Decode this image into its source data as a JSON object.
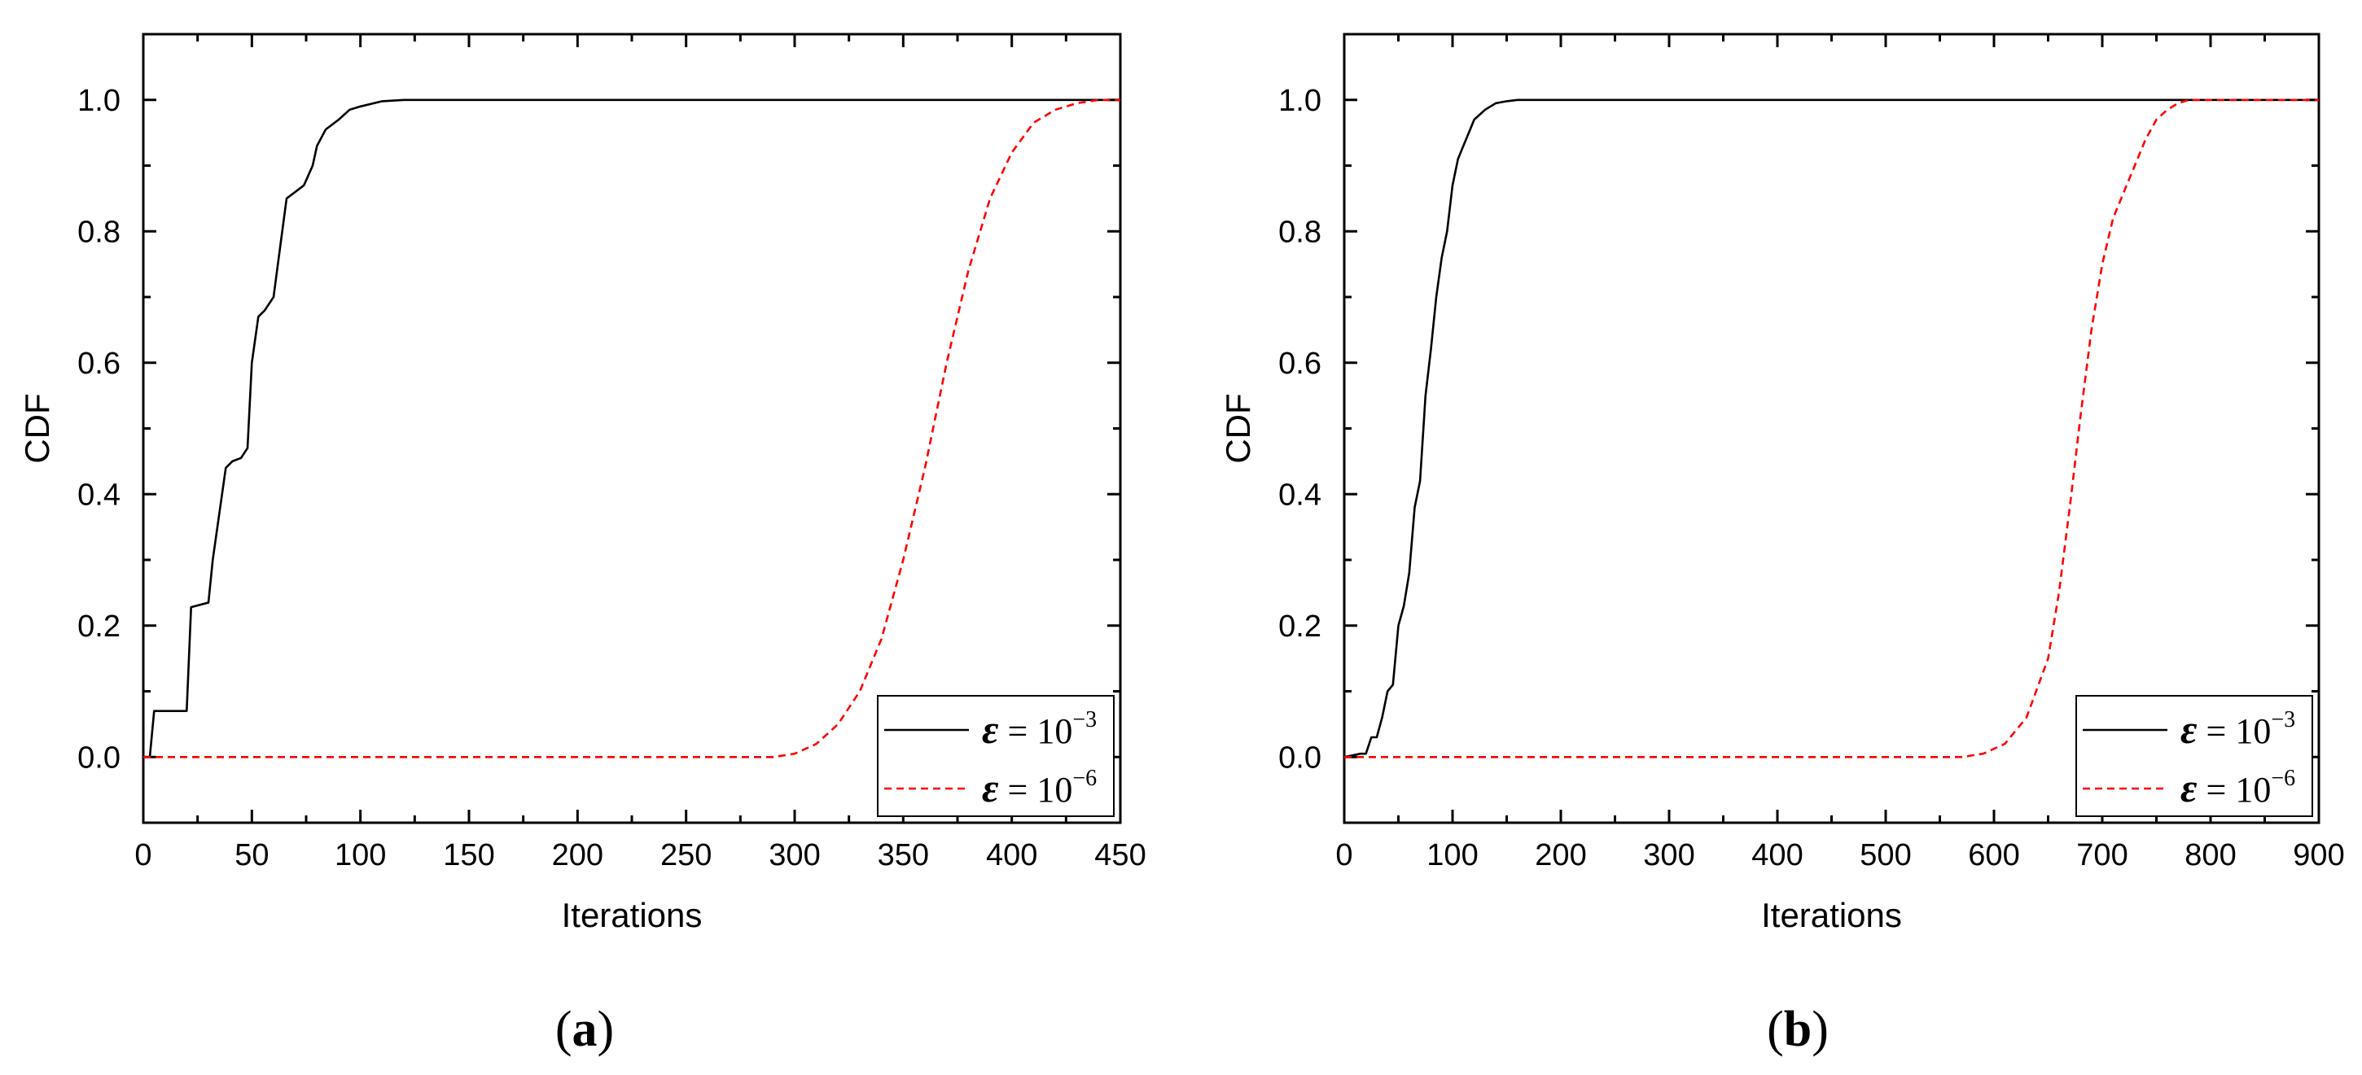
{
  "chart_data": [
    {
      "panel_label": "a",
      "type": "line",
      "xlabel": "Iterations",
      "ylabel": "CDF",
      "xlim": [
        0,
        450
      ],
      "ylim": [
        -0.1,
        1.1
      ],
      "xticks": [
        "0",
        "50",
        "100",
        "150",
        "200",
        "250",
        "300",
        "350",
        "400",
        "450"
      ],
      "yticks": [
        "0.0",
        "0.2",
        "0.4",
        "0.6",
        "0.8",
        "1.0"
      ],
      "legend_position": "bottom-right",
      "series": [
        {
          "name": "ε = 10^-3",
          "legend": {
            "symbol": "ε",
            "eq": " = 10",
            "exp": "−3"
          },
          "color": "#000000",
          "style": "solid",
          "x": [
            3,
            5,
            20,
            22,
            30,
            32,
            38,
            41,
            45,
            48,
            50,
            53,
            56,
            60,
            62,
            66,
            70,
            74,
            78,
            80,
            84,
            90,
            95,
            100,
            110,
            120,
            450
          ],
          "y": [
            0.0,
            0.07,
            0.07,
            0.228,
            0.235,
            0.3,
            0.44,
            0.45,
            0.455,
            0.47,
            0.6,
            0.67,
            0.68,
            0.7,
            0.75,
            0.85,
            0.86,
            0.87,
            0.9,
            0.93,
            0.955,
            0.97,
            0.985,
            0.99,
            0.998,
            1.0,
            1.0
          ]
        },
        {
          "name": "ε = 10^-6",
          "legend": {
            "symbol": "ε",
            "eq": " = 10",
            "exp": "−6"
          },
          "color": "#ff0000",
          "style": "dashed",
          "x": [
            0,
            290,
            300,
            310,
            320,
            330,
            340,
            350,
            360,
            370,
            380,
            390,
            400,
            410,
            420,
            430,
            440,
            450
          ],
          "y": [
            0.0,
            0.0,
            0.005,
            0.02,
            0.05,
            0.1,
            0.18,
            0.3,
            0.44,
            0.6,
            0.74,
            0.85,
            0.92,
            0.965,
            0.985,
            0.995,
            1.0,
            1.0
          ]
        }
      ]
    },
    {
      "panel_label": "b",
      "type": "line",
      "xlabel": "Iterations",
      "ylabel": "CDF",
      "xlim": [
        0,
        900
      ],
      "ylim": [
        -0.1,
        1.1
      ],
      "xticks": [
        "0",
        "100",
        "200",
        "300",
        "400",
        "500",
        "600",
        "700",
        "800",
        "900"
      ],
      "yticks": [
        "0.0",
        "0.2",
        "0.4",
        "0.6",
        "0.8",
        "1.0"
      ],
      "legend_position": "bottom-right",
      "series": [
        {
          "name": "ε = 10^-3",
          "legend": {
            "symbol": "ε",
            "eq": " = 10",
            "exp": "−3"
          },
          "color": "#000000",
          "style": "solid",
          "x": [
            0,
            15,
            20,
            25,
            30,
            35,
            40,
            45,
            50,
            55,
            60,
            65,
            70,
            75,
            80,
            85,
            90,
            95,
            100,
            105,
            110,
            115,
            120,
            130,
            140,
            150,
            160,
            170,
            900
          ],
          "y": [
            0.0,
            0.005,
            0.005,
            0.03,
            0.03,
            0.06,
            0.1,
            0.11,
            0.2,
            0.23,
            0.28,
            0.38,
            0.42,
            0.55,
            0.62,
            0.7,
            0.76,
            0.8,
            0.87,
            0.91,
            0.93,
            0.95,
            0.97,
            0.985,
            0.995,
            0.998,
            1.0,
            1.0,
            1.0
          ]
        },
        {
          "name": "ε = 10^-6",
          "legend": {
            "symbol": "ε",
            "eq": " = 10",
            "exp": "−6"
          },
          "color": "#ff0000",
          "style": "dashed",
          "x": [
            0,
            570,
            590,
            610,
            630,
            650,
            660,
            670,
            680,
            690,
            700,
            710,
            720,
            730,
            740,
            750,
            760,
            770,
            780,
            800,
            900
          ],
          "y": [
            0.0,
            0.0,
            0.005,
            0.02,
            0.06,
            0.15,
            0.25,
            0.38,
            0.52,
            0.65,
            0.75,
            0.82,
            0.86,
            0.9,
            0.94,
            0.97,
            0.985,
            0.995,
            1.0,
            1.0,
            1.0
          ]
        }
      ]
    }
  ]
}
